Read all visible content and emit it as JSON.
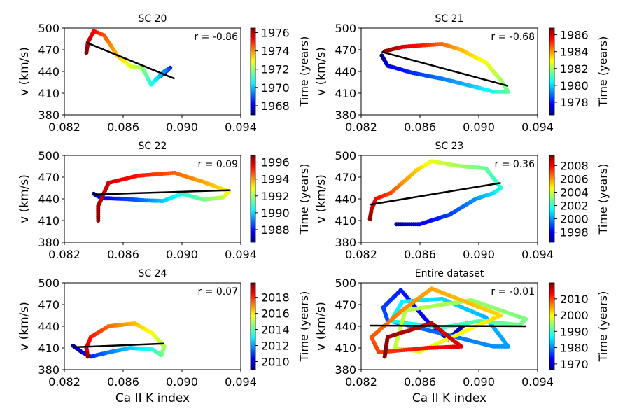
{
  "figure": {
    "xlabel": "Ca II K index",
    "ylabel": "v (km/s)",
    "colorbar_label": "Time (years)",
    "colormap": [
      "#00007f",
      "#0000ff",
      "#007fff",
      "#00ffff",
      "#7fff7f",
      "#ffff00",
      "#ff7f00",
      "#ff0000",
      "#7f0000"
    ]
  },
  "chart_data": [
    {
      "type": "scatter",
      "title": "SC 20",
      "annotation": "r = -0.86",
      "xlim": [
        0.082,
        0.094
      ],
      "ylim": [
        380,
        500
      ],
      "xticks": [
        "0.082",
        "0.086",
        "0.090",
        "0.094"
      ],
      "yticks": [
        "380",
        "410",
        "440",
        "470",
        "500"
      ],
      "time_range": [
        1967,
        1976.5
      ],
      "colorbar_ticks": [
        "1968",
        "1970",
        "1972",
        "1974",
        "1976"
      ],
      "path": [
        [
          0.0885,
          433,
          1967.2
        ],
        [
          0.0892,
          445,
          1968.5
        ],
        [
          0.0888,
          440,
          1969.5
        ],
        [
          0.0879,
          422,
          1970.8
        ],
        [
          0.0873,
          445,
          1971.8
        ],
        [
          0.0865,
          447,
          1972.6
        ],
        [
          0.0856,
          462,
          1973.5
        ],
        [
          0.0847,
          490,
          1974.5
        ],
        [
          0.084,
          496,
          1975.3
        ],
        [
          0.0836,
          480,
          1976.0
        ],
        [
          0.0835,
          466,
          1976.4
        ]
      ],
      "fit": [
        [
          0.0835,
          480
        ],
        [
          0.0895,
          430
        ]
      ]
    },
    {
      "type": "scatter",
      "title": "SC 21",
      "annotation": "r = -0.68",
      "xlim": [
        0.082,
        0.094
      ],
      "ylim": [
        380,
        500
      ],
      "xticks": [
        "0.082",
        "0.086",
        "0.090",
        "0.094"
      ],
      "yticks": [
        "380",
        "410",
        "440",
        "470",
        "500"
      ],
      "time_range": [
        1976.5,
        1986.8
      ],
      "colorbar_ticks": [
        "1978",
        "1980",
        "1982",
        "1984",
        "1986"
      ],
      "path": [
        [
          0.0834,
          462,
          1976.6
        ],
        [
          0.0838,
          448,
          1977.4
        ],
        [
          0.0855,
          438,
          1978.2
        ],
        [
          0.0875,
          430,
          1979.0
        ],
        [
          0.0895,
          420,
          1979.8
        ],
        [
          0.091,
          412,
          1980.6
        ],
        [
          0.092,
          412,
          1981.3
        ],
        [
          0.0915,
          428,
          1982.0
        ],
        [
          0.0905,
          452,
          1982.8
        ],
        [
          0.0888,
          470,
          1983.6
        ],
        [
          0.0875,
          478,
          1984.4
        ],
        [
          0.0862,
          476,
          1985.2
        ],
        [
          0.0848,
          474,
          1985.9
        ],
        [
          0.0836,
          468,
          1986.6
        ]
      ],
      "fit": [
        [
          0.0834,
          467
        ],
        [
          0.092,
          420
        ]
      ]
    },
    {
      "type": "scatter",
      "title": "SC 22",
      "annotation": "r = 0.09",
      "xlim": [
        0.082,
        0.094
      ],
      "ylim": [
        380,
        500
      ],
      "xticks": [
        "0.082",
        "0.086",
        "0.090",
        "0.094"
      ],
      "yticks": [
        "380",
        "410",
        "440",
        "470",
        "500"
      ],
      "time_range": [
        1986.5,
        1996.8
      ],
      "colorbar_ticks": [
        "1988",
        "1990",
        "1992",
        "1994",
        "1996"
      ],
      "path": [
        [
          0.084,
          447,
          1986.6
        ],
        [
          0.0845,
          441,
          1987.5
        ],
        [
          0.086,
          440,
          1988.3
        ],
        [
          0.0875,
          438,
          1989.0
        ],
        [
          0.0887,
          437,
          1989.8
        ],
        [
          0.09,
          447,
          1990.7
        ],
        [
          0.0915,
          439,
          1991.5
        ],
        [
          0.0928,
          442,
          1992.3
        ],
        [
          0.0932,
          450,
          1993.0
        ],
        [
          0.0915,
          463,
          1993.8
        ],
        [
          0.0895,
          476,
          1994.5
        ],
        [
          0.087,
          472,
          1995.3
        ],
        [
          0.085,
          462,
          1996.0
        ],
        [
          0.0843,
          430,
          1996.4
        ],
        [
          0.0843,
          410,
          1996.7
        ]
      ],
      "fit": [
        [
          0.084,
          446
        ],
        [
          0.0933,
          452
        ]
      ]
    },
    {
      "type": "scatter",
      "title": "SC 23",
      "annotation": "r = 0.36",
      "xlim": [
        0.082,
        0.094
      ],
      "ylim": [
        380,
        500
      ],
      "xticks": [
        "0.082",
        "0.086",
        "0.090",
        "0.094"
      ],
      "yticks": [
        "380",
        "410",
        "440",
        "470",
        "500"
      ],
      "time_range": [
        1996.5,
        2009.5
      ],
      "colorbar_ticks": [
        "1998",
        "2000",
        "2002",
        "2004",
        "2006",
        "2008"
      ],
      "path": [
        [
          0.0844,
          405,
          1996.7
        ],
        [
          0.086,
          405,
          1997.8
        ],
        [
          0.088,
          418,
          1998.9
        ],
        [
          0.0898,
          440,
          2000.0
        ],
        [
          0.091,
          448,
          2001.0
        ],
        [
          0.0915,
          455,
          2001.8
        ],
        [
          0.0905,
          482,
          2002.6
        ],
        [
          0.0885,
          486,
          2003.5
        ],
        [
          0.0868,
          492,
          2004.3
        ],
        [
          0.0858,
          480,
          2005.2
        ],
        [
          0.0848,
          462,
          2006.0
        ],
        [
          0.084,
          448,
          2006.9
        ],
        [
          0.083,
          440,
          2007.8
        ],
        [
          0.0827,
          425,
          2008.6
        ],
        [
          0.0826,
          412,
          2009.3
        ]
      ],
      "fit": [
        [
          0.0826,
          432
        ],
        [
          0.0915,
          462
        ]
      ]
    },
    {
      "type": "scatter",
      "title": "SC 24",
      "annotation": "r = 0.07",
      "xlim": [
        0.082,
        0.094
      ],
      "ylim": [
        380,
        500
      ],
      "xticks": [
        "0.082",
        "0.086",
        "0.090",
        "0.094"
      ],
      "yticks": [
        "380",
        "410",
        "440",
        "470",
        "500"
      ],
      "time_range": [
        2009,
        2019.8
      ],
      "colorbar_ticks": [
        "2010",
        "2012",
        "2014",
        "2016",
        "2018"
      ],
      "path": [
        [
          0.0826,
          413,
          2009.1
        ],
        [
          0.0832,
          404,
          2009.9
        ],
        [
          0.0838,
          398,
          2010.7
        ],
        [
          0.085,
          404,
          2011.6
        ],
        [
          0.0865,
          410,
          2012.5
        ],
        [
          0.088,
          408,
          2013.4
        ],
        [
          0.0886,
          400,
          2014.1
        ],
        [
          0.0888,
          412,
          2014.8
        ],
        [
          0.088,
          430,
          2015.6
        ],
        [
          0.0868,
          444,
          2016.4
        ],
        [
          0.085,
          440,
          2017.3
        ],
        [
          0.0838,
          425,
          2018.2
        ],
        [
          0.0835,
          410,
          2018.9
        ],
        [
          0.0836,
          398,
          2019.6
        ]
      ],
      "fit": [
        [
          0.0826,
          411
        ],
        [
          0.0888,
          416
        ]
      ]
    },
    {
      "type": "scatter",
      "title": "Entire dataset",
      "annotation": "r = -0.01",
      "xlim": [
        0.082,
        0.094
      ],
      "ylim": [
        380,
        500
      ],
      "xticks": [
        "0.082",
        "0.086",
        "0.090",
        "0.094"
      ],
      "yticks": [
        "380",
        "410",
        "440",
        "470",
        "500"
      ],
      "time_range": [
        1966.5,
        2019.8
      ],
      "colorbar_ticks": [
        "1970",
        "1980",
        "1990",
        "2000",
        "2010"
      ],
      "path": [
        [
          0.0885,
          433,
          1967.2
        ],
        [
          0.0892,
          445,
          1968.5
        ],
        [
          0.0879,
          422,
          1970.8
        ],
        [
          0.0865,
          447,
          1972.6
        ],
        [
          0.0847,
          490,
          1974.5
        ],
        [
          0.0835,
          466,
          1976.4
        ],
        [
          0.0838,
          448,
          1977.4
        ],
        [
          0.0875,
          430,
          1979.0
        ],
        [
          0.091,
          412,
          1980.6
        ],
        [
          0.092,
          412,
          1981.3
        ],
        [
          0.0905,
          452,
          1982.8
        ],
        [
          0.0875,
          478,
          1984.4
        ],
        [
          0.0848,
          474,
          1985.9
        ],
        [
          0.084,
          447,
          1986.6
        ],
        [
          0.0875,
          438,
          1989.0
        ],
        [
          0.09,
          447,
          1990.7
        ],
        [
          0.0928,
          442,
          1992.3
        ],
        [
          0.0932,
          450,
          1993.0
        ],
        [
          0.0895,
          476,
          1994.5
        ],
        [
          0.085,
          462,
          1996.0
        ],
        [
          0.0843,
          410,
          1996.7
        ],
        [
          0.086,
          405,
          1997.8
        ],
        [
          0.0898,
          440,
          2000.0
        ],
        [
          0.0915,
          455,
          2001.8
        ],
        [
          0.0868,
          492,
          2004.3
        ],
        [
          0.0848,
          462,
          2006.0
        ],
        [
          0.0827,
          425,
          2008.6
        ],
        [
          0.0832,
          404,
          2009.9
        ],
        [
          0.0865,
          410,
          2012.5
        ],
        [
          0.0888,
          412,
          2014.8
        ],
        [
          0.0868,
          444,
          2016.4
        ],
        [
          0.0838,
          425,
          2018.2
        ],
        [
          0.0836,
          398,
          2019.6
        ]
      ],
      "fit": [
        [
          0.0826,
          441
        ],
        [
          0.0932,
          440
        ]
      ]
    }
  ]
}
